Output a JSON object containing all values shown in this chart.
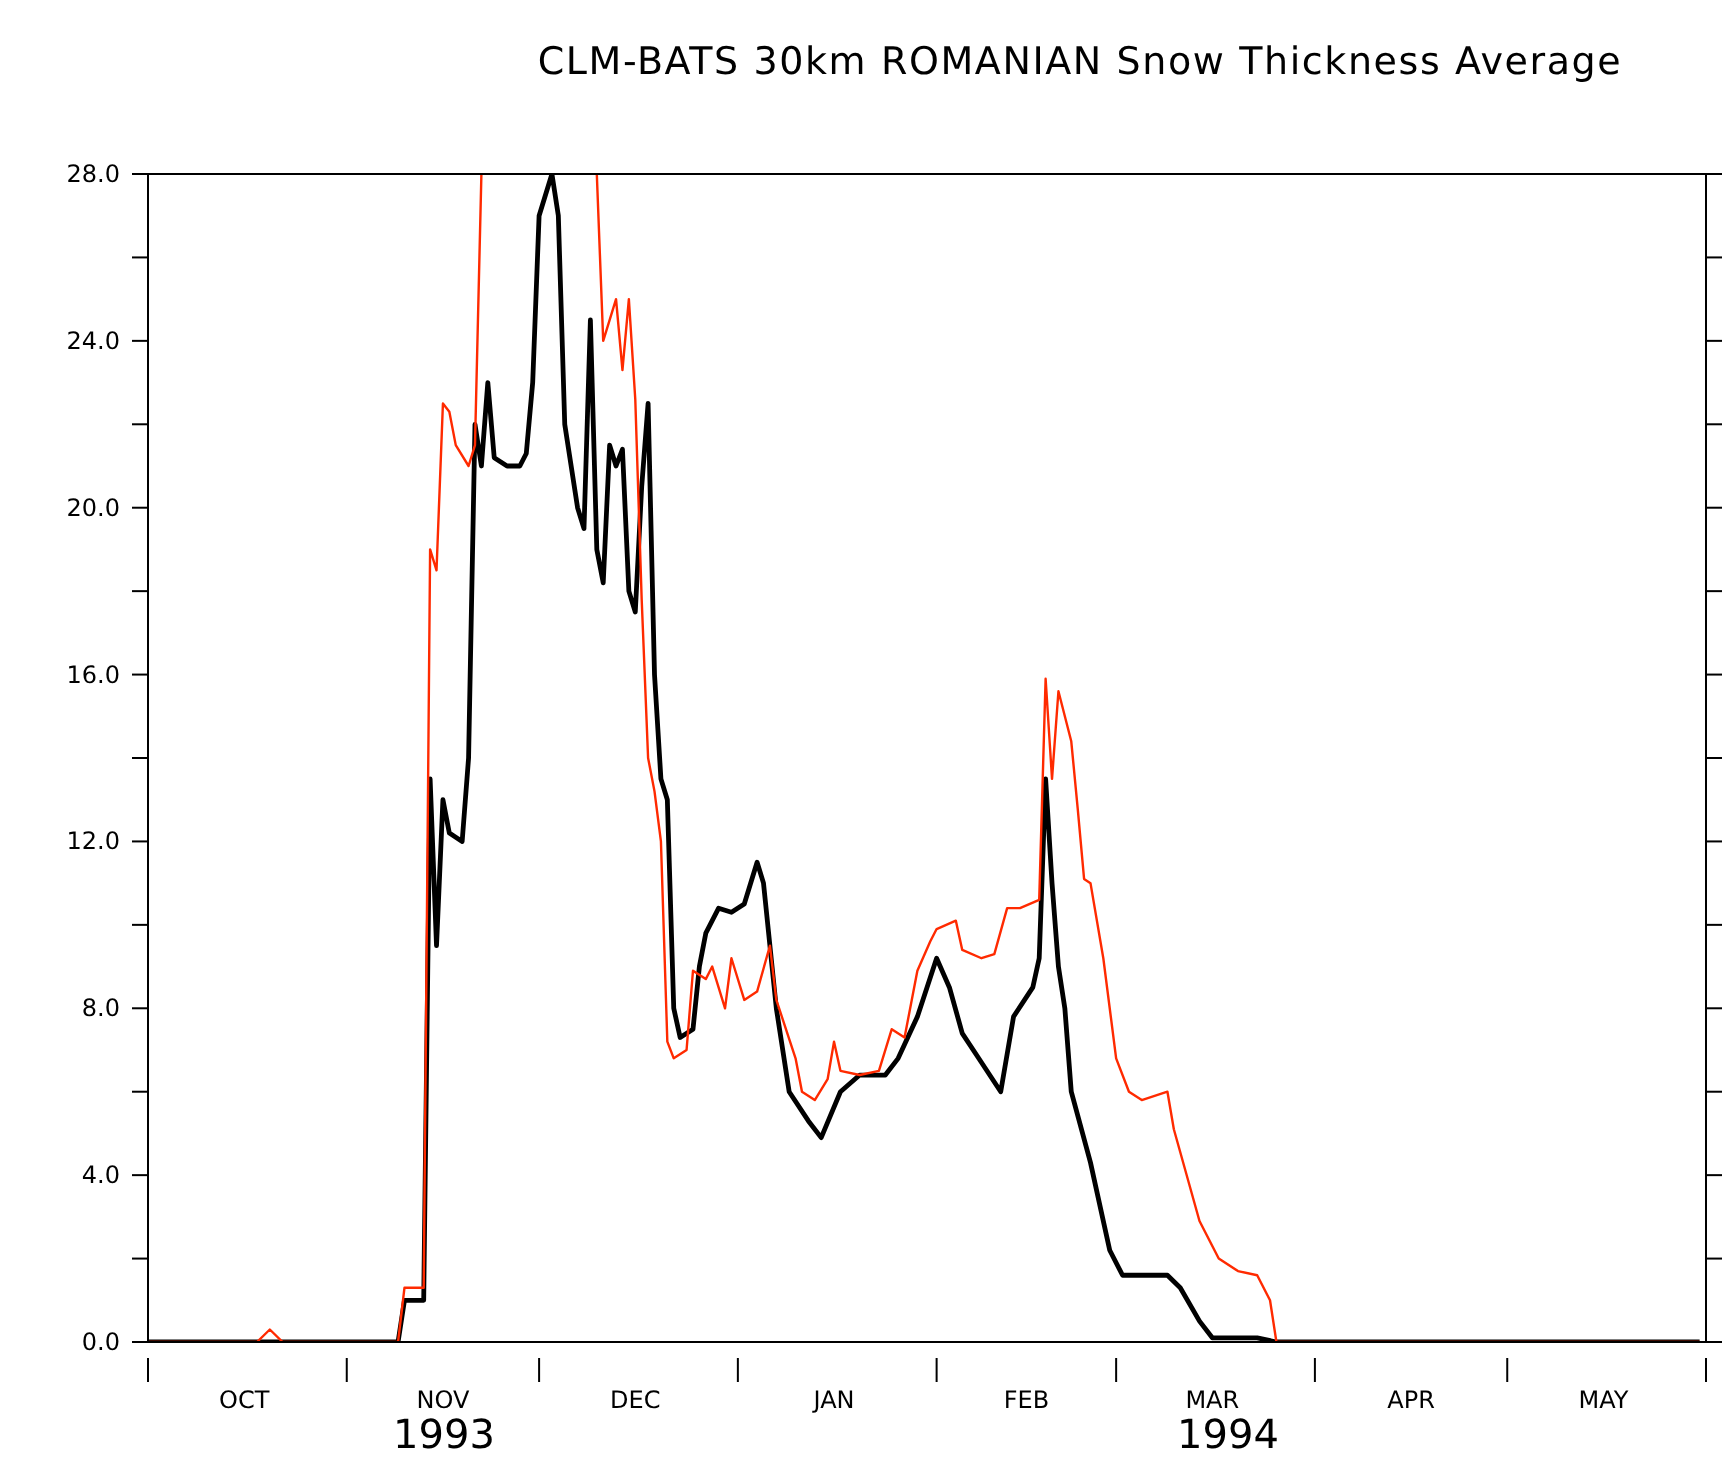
{
  "chart_data": {
    "type": "line",
    "title": "CLM-BATS 30km ROMANIAN Snow Thickness Average",
    "xlim": [
      "1993-10-01",
      "1994-06-01"
    ],
    "xticks": [
      {
        "value": "1993-10-01",
        "label": null
      },
      {
        "value": "1993-10-16",
        "label": "OCT"
      },
      {
        "value": "1993-11-01",
        "label": null
      },
      {
        "value": "1993-11-16",
        "label": "NOV"
      },
      {
        "value": "1993-12-01",
        "label": null
      },
      {
        "value": "1993-12-16",
        "label": "DEC"
      },
      {
        "value": "1994-01-01",
        "label": null
      },
      {
        "value": "1994-01-16",
        "label": "JAN"
      },
      {
        "value": "1994-02-01",
        "label": null
      },
      {
        "value": "1994-02-15",
        "label": "FEB"
      },
      {
        "value": "1994-03-01",
        "label": null
      },
      {
        "value": "1994-03-16",
        "label": "MAR"
      },
      {
        "value": "1994-04-01",
        "label": null
      },
      {
        "value": "1994-04-16",
        "label": "APR"
      },
      {
        "value": "1994-05-01",
        "label": null
      },
      {
        "value": "1994-05-16",
        "label": "MAY"
      },
      {
        "value": "1994-06-01",
        "label": null
      }
    ],
    "ylim": [
      0,
      28
    ],
    "yticks": [
      {
        "value": 0,
        "label": "0.0"
      },
      {
        "value": 2,
        "label": null
      },
      {
        "value": 4,
        "label": "4.0"
      },
      {
        "value": 6,
        "label": null
      },
      {
        "value": 8,
        "label": "8.0"
      },
      {
        "value": 10,
        "label": null
      },
      {
        "value": 12,
        "label": "12.0"
      },
      {
        "value": 14,
        "label": null
      },
      {
        "value": 16,
        "label": "16.0"
      },
      {
        "value": 18,
        "label": null
      },
      {
        "value": 20,
        "label": "20.0"
      },
      {
        "value": 22,
        "label": null
      },
      {
        "value": 24,
        "label": "24.0"
      },
      {
        "value": 26,
        "label": null
      },
      {
        "value": 28,
        "label": "28.0"
      }
    ],
    "annotations": [
      "1993",
      "1994"
    ],
    "marker": "none",
    "line_style": "solid",
    "series": [
      {
        "color": "#000000",
        "x": [
          "1993-10-01",
          "1993-11-09",
          "1993-11-10",
          "1993-11-13",
          "1993-11-14",
          "1993-11-15",
          "1993-11-16",
          "1993-11-17",
          "1993-11-19",
          "1993-11-20",
          "1993-11-21",
          "1993-11-22",
          "1993-11-23",
          "1993-11-24",
          "1993-11-26",
          "1993-11-28",
          "1993-11-29",
          "1993-11-30",
          "1993-12-01",
          "1993-12-03",
          "1993-12-04",
          "1993-12-05",
          "1993-12-07",
          "1993-12-08",
          "1993-12-09",
          "1993-12-10",
          "1993-12-11",
          "1993-12-12",
          "1993-12-13",
          "1993-12-14",
          "1993-12-15",
          "1993-12-16",
          "1993-12-17",
          "1993-12-18",
          "1993-12-19",
          "1993-12-20",
          "1993-12-21",
          "1993-12-22",
          "1993-12-23",
          "1993-12-25",
          "1993-12-26",
          "1993-12-27",
          "1993-12-29",
          "1993-12-31",
          "1994-01-02",
          "1994-01-04",
          "1994-01-05",
          "1994-01-07",
          "1994-01-09",
          "1994-01-12",
          "1994-01-14",
          "1994-01-17",
          "1994-01-20",
          "1994-01-24",
          "1994-01-26",
          "1994-01-29",
          "1994-02-01",
          "1994-02-03",
          "1994-02-05",
          "1994-02-08",
          "1994-02-11",
          "1994-02-13",
          "1994-02-16",
          "1994-02-17",
          "1994-02-18",
          "1994-02-19",
          "1994-02-20",
          "1994-02-21",
          "1994-02-22",
          "1994-02-25",
          "1994-02-28",
          "1994-03-02",
          "1994-03-05",
          "1994-03-09",
          "1994-03-11",
          "1994-03-14",
          "1994-03-16",
          "1994-03-23",
          "1994-03-26",
          "1994-05-31"
        ],
        "values": [
          0,
          0,
          1.0,
          1.0,
          13.5,
          9.5,
          13,
          12.2,
          12.0,
          14,
          22,
          21,
          23,
          21.2,
          21.0,
          21.0,
          21.3,
          23,
          27,
          28,
          27,
          22,
          20,
          19.5,
          24.5,
          19,
          18.2,
          21.5,
          21,
          21.4,
          18,
          17.5,
          20.5,
          22.5,
          16,
          13.5,
          13,
          8,
          7.3,
          7.5,
          9.0,
          9.8,
          10.4,
          10.3,
          10.5,
          11.5,
          11.0,
          8.0,
          6.0,
          5.3,
          4.9,
          6.0,
          6.4,
          6.4,
          6.8,
          7.8,
          9.2,
          8.5,
          7.4,
          6.7,
          6.0,
          7.8,
          8.5,
          9.2,
          13.5,
          11.0,
          9.0,
          8.0,
          6.0,
          4.3,
          2.2,
          1.6,
          1.6,
          1.6,
          1.3,
          0.5,
          0.1,
          0.1,
          0,
          0
        ]
      },
      {
        "color": "#ff2a00",
        "x": [
          "1993-10-01",
          "1993-10-18",
          "1993-10-20",
          "1993-10-22",
          "1993-11-09",
          "1993-11-10",
          "1993-11-13",
          "1993-11-14",
          "1993-11-15",
          "1993-11-16",
          "1993-11-17",
          "1993-11-18",
          "1993-11-20",
          "1993-11-21",
          "1993-11-22",
          "1993-11-23",
          "1993-12-09",
          "1993-12-10",
          "1993-12-11",
          "1993-12-13",
          "1993-12-14",
          "1993-12-15",
          "1993-12-16",
          "1993-12-17",
          "1993-12-18",
          "1993-12-19",
          "1993-12-20",
          "1993-12-21",
          "1993-12-22",
          "1993-12-24",
          "1993-12-25",
          "1993-12-27",
          "1993-12-28",
          "1993-12-30",
          "1993-12-31",
          "1994-01-02",
          "1994-01-04",
          "1994-01-06",
          "1994-01-07",
          "1994-01-10",
          "1994-01-11",
          "1994-01-13",
          "1994-01-15",
          "1994-01-16",
          "1994-01-17",
          "1994-01-20",
          "1994-01-23",
          "1994-01-25",
          "1994-01-27",
          "1994-01-29",
          "1994-01-31",
          "1994-02-01",
          "1994-02-04",
          "1994-02-05",
          "1994-02-08",
          "1994-02-10",
          "1994-02-12",
          "1994-02-14",
          "1994-02-17",
          "1994-02-18",
          "1994-02-19",
          "1994-02-20",
          "1994-02-22",
          "1994-02-23",
          "1994-02-24",
          "1994-02-25",
          "1994-02-27",
          "1994-03-01",
          "1994-03-03",
          "1994-03-05",
          "1994-03-09",
          "1994-03-10",
          "1994-03-14",
          "1994-03-17",
          "1994-03-20",
          "1994-03-23",
          "1994-03-25",
          "1994-03-26",
          "1994-05-31"
        ],
        "values": [
          0,
          0,
          0.3,
          0,
          0,
          1.3,
          1.3,
          19.0,
          18.5,
          22.5,
          22.3,
          21.5,
          21.0,
          21.5,
          28,
          null,
          null,
          28,
          24.0,
          25,
          23.3,
          25,
          22.6,
          17.8,
          14.0,
          13.2,
          12.0,
          7.2,
          6.8,
          7.0,
          8.9,
          8.7,
          9.0,
          8.0,
          9.2,
          8.2,
          8.4,
          9.5,
          8.2,
          6.8,
          6.0,
          5.8,
          6.3,
          7.2,
          6.5,
          6.4,
          6.5,
          7.5,
          7.3,
          8.9,
          9.6,
          9.9,
          10.1,
          9.4,
          9.2,
          9.3,
          10.4,
          10.4,
          10.6,
          15.9,
          13.5,
          15.6,
          14.4,
          12.8,
          11.1,
          11.0,
          9.2,
          6.8,
          6.0,
          5.8,
          6.0,
          5.1,
          2.9,
          2.0,
          1.7,
          1.6,
          1.0,
          0,
          0
        ]
      }
    ]
  }
}
